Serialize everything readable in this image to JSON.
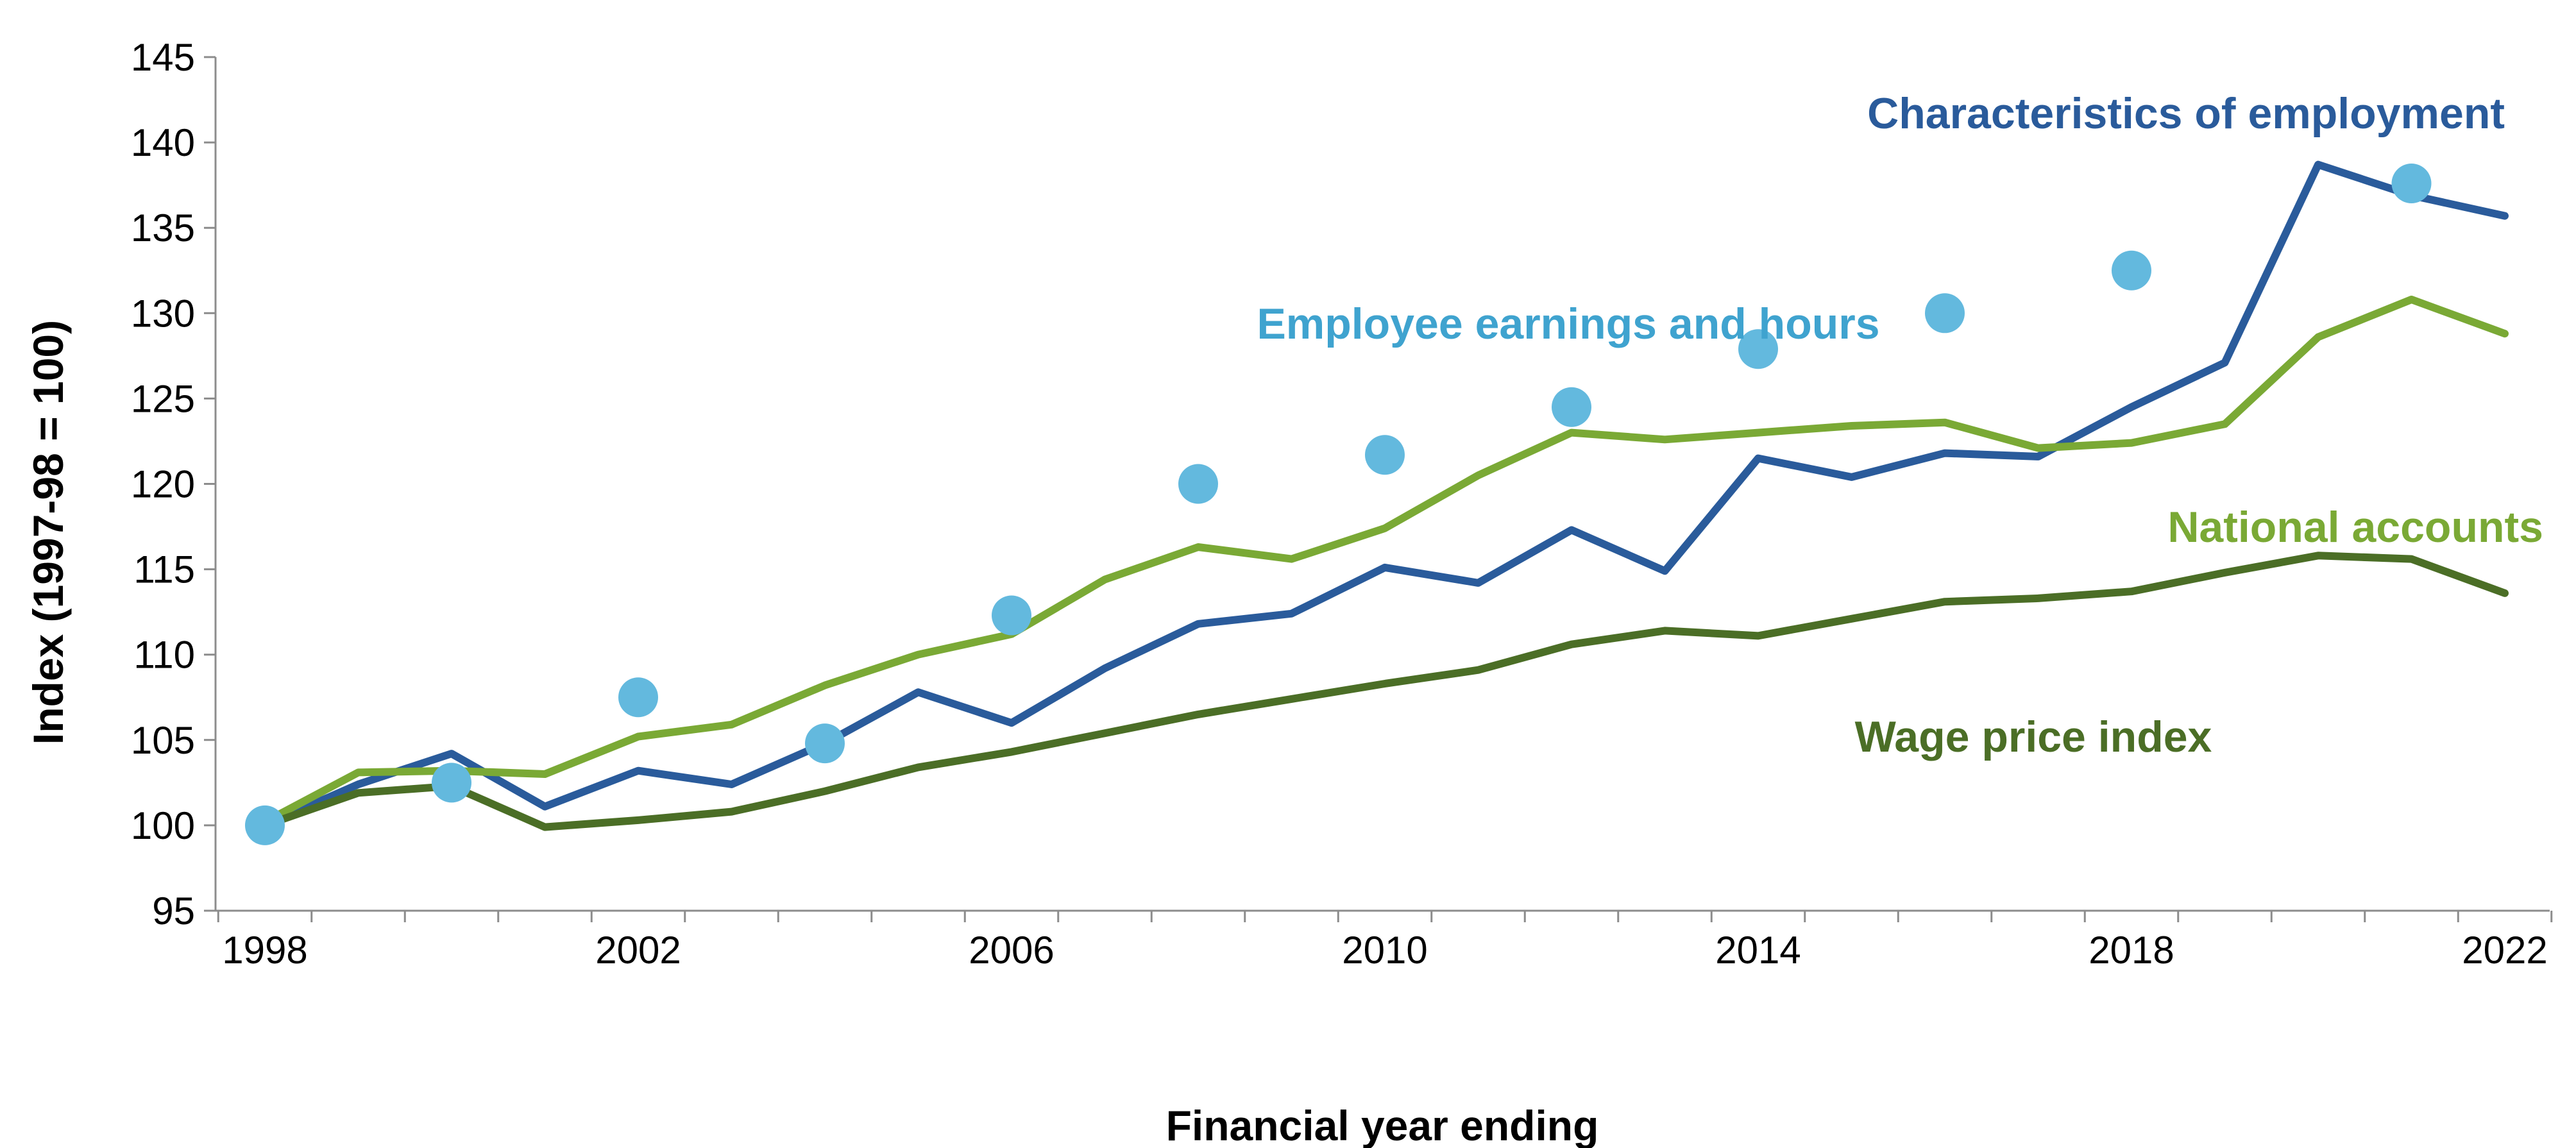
{
  "chart_data": {
    "type": "line",
    "title": "",
    "xlabel": "Financial year ending",
    "ylabel": "Index (1997-98 = 100)",
    "xlim": [
      1998,
      2022
    ],
    "ylim": [
      95,
      145
    ],
    "y_ticks": [
      95,
      100,
      105,
      110,
      115,
      120,
      125,
      130,
      135,
      140,
      145
    ],
    "x_ticks": [
      1998,
      2002,
      2006,
      2010,
      2014,
      2018,
      2022
    ],
    "grid": false,
    "legend": "inline-labels",
    "series": [
      {
        "name": "Characteristics of employment",
        "kind": "line",
        "color": "#2a5b9b",
        "label_anchor": "end",
        "x": [
          1998,
          1999,
          2000,
          2001,
          2002,
          2003,
          2004,
          2005,
          2006,
          2007,
          2008,
          2009,
          2010,
          2011,
          2012,
          2013,
          2014,
          2015,
          2016,
          2017,
          2018,
          2019,
          2020,
          2021,
          2022
        ],
        "values": [
          100,
          102.4,
          104.2,
          101.1,
          103.2,
          102.4,
          104.8,
          107.8,
          106.0,
          109.2,
          111.8,
          112.4,
          115.1,
          114.2,
          117.3,
          114.9,
          121.5,
          120.4,
          121.8,
          121.6,
          124.5,
          127.1,
          138.7,
          136.9,
          135.7
        ]
      },
      {
        "name": "National accounts",
        "kind": "line",
        "color": "#7aa935",
        "label_anchor": "end",
        "x": [
          1998,
          1999,
          2000,
          2001,
          2002,
          2003,
          2004,
          2005,
          2006,
          2007,
          2008,
          2009,
          2010,
          2011,
          2012,
          2013,
          2014,
          2015,
          2016,
          2017,
          2018,
          2019,
          2020,
          2021,
          2022
        ],
        "values": [
          100.2,
          103.1,
          103.2,
          103.0,
          105.2,
          105.9,
          108.2,
          110.0,
          111.2,
          114.4,
          116.3,
          115.6,
          117.4,
          120.5,
          123.0,
          122.6,
          123.0,
          123.4,
          123.6,
          122.1,
          122.4,
          123.5,
          128.6,
          130.8,
          128.8
        ]
      },
      {
        "name": "Wage price index",
        "kind": "line",
        "color": "#4b6e26",
        "label_anchor": "middle",
        "x": [
          1998,
          1999,
          2000,
          2001,
          2002,
          2003,
          2004,
          2005,
          2006,
          2007,
          2008,
          2009,
          2010,
          2011,
          2012,
          2013,
          2014,
          2015,
          2016,
          2017,
          2018,
          2019,
          2020,
          2021,
          2022
        ],
        "values": [
          100,
          101.9,
          102.3,
          99.9,
          100.3,
          100.8,
          102.0,
          103.4,
          104.3,
          105.4,
          106.5,
          107.4,
          108.3,
          109.1,
          110.6,
          111.4,
          111.1,
          112.1,
          113.1,
          113.3,
          113.7,
          114.8,
          115.8,
          115.6,
          113.6
        ]
      },
      {
        "name": "Employee earnings and hours",
        "kind": "scatter",
        "color": "#63b9de",
        "label_anchor": "middle",
        "x": [
          1998,
          2000,
          2002,
          2004,
          2006,
          2008,
          2010,
          2012,
          2014,
          2016,
          2018,
          2021
        ],
        "values": [
          100,
          102.5,
          107.5,
          104.8,
          112.3,
          120.0,
          121.7,
          124.5,
          127.9,
          130.0,
          132.5,
          137.6
        ]
      }
    ]
  }
}
